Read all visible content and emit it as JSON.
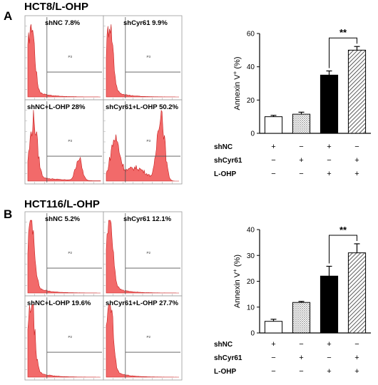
{
  "panels": [
    {
      "letter": "A",
      "title": "HCT8/L-OHP",
      "gate": "P3",
      "flow": [
        {
          "label": "shNC 7.8%",
          "percent": 7.8,
          "profile": "low"
        },
        {
          "label": "shCyr61 9.9%",
          "percent": 9.9,
          "profile": "low"
        },
        {
          "label": "shNC+L-OHP 28%",
          "percent": 28,
          "profile": "mid"
        },
        {
          "label": "shCyr61+L-OHP 50.2%",
          "percent": 50.2,
          "profile": "high"
        }
      ],
      "chart_data": {
        "type": "bar",
        "ylabel": "Annexin V",
        "ylabel_superscript": "+",
        "ylabel_unit": "(%)",
        "ylim": [
          0,
          60
        ],
        "yticks": [
          "0",
          "20",
          "40",
          "60"
        ],
        "values": [
          10,
          11.5,
          35,
          50
        ],
        "errors": [
          0.8,
          1.2,
          2.5,
          2.2
        ],
        "bar_styles": [
          "white",
          "dotted",
          "black",
          "hatched"
        ],
        "significance": {
          "from": 2,
          "to": 3,
          "label": "**"
        }
      },
      "conditions": [
        {
          "name": "shNC",
          "signs": [
            "+",
            "−",
            "+",
            "−"
          ]
        },
        {
          "name": "shCyr61",
          "signs": [
            "−",
            "+",
            "−",
            "+"
          ]
        },
        {
          "name": "L-OHP",
          "signs": [
            "−",
            "−",
            "+",
            "+"
          ]
        }
      ]
    },
    {
      "letter": "B",
      "title": "HCT116/L-OHP",
      "gate": "P2",
      "flow": [
        {
          "label": "shNC 5.2%",
          "percent": 5.2,
          "profile": "low"
        },
        {
          "label": "shCyr61 12.1%",
          "percent": 12.1,
          "profile": "low"
        },
        {
          "label": "shNC+L-OHP 19.6%",
          "percent": 19.6,
          "profile": "low"
        },
        {
          "label": "shCyr61+L-OHP 27.7%",
          "percent": 27.7,
          "profile": "low"
        }
      ],
      "chart_data": {
        "type": "bar",
        "ylabel": "Annexin V",
        "ylabel_superscript": "+",
        "ylabel_unit": "(%)",
        "ylim": [
          0,
          40
        ],
        "yticks": [
          "0",
          "10",
          "20",
          "30",
          "40"
        ],
        "values": [
          4.5,
          11.8,
          22,
          31
        ],
        "errors": [
          0.8,
          0.4,
          3.8,
          3.5
        ],
        "bar_styles": [
          "white",
          "dotted",
          "black",
          "hatched"
        ],
        "significance": {
          "from": 2,
          "to": 3,
          "label": "**"
        }
      },
      "conditions": [
        {
          "name": "shNC",
          "signs": [
            "+",
            "−",
            "+",
            "−"
          ]
        },
        {
          "name": "shCyr61",
          "signs": [
            "−",
            "+",
            "−",
            "+"
          ]
        },
        {
          "name": "L-OHP",
          "signs": [
            "−",
            "−",
            "+",
            "+"
          ]
        }
      ]
    }
  ]
}
